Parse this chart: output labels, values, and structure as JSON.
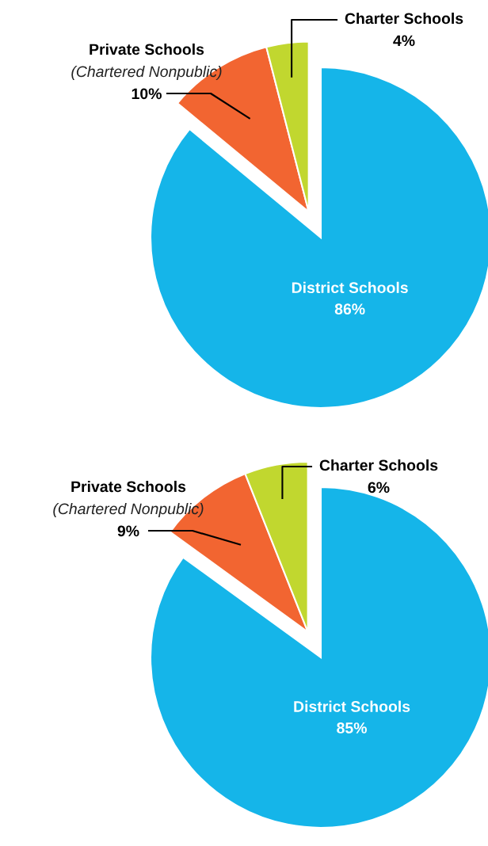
{
  "chart_data": [
    {
      "type": "pie",
      "categories": [
        "District Schools",
        "Private Schools",
        "Charter Schools"
      ],
      "values": [
        86,
        10,
        4
      ],
      "colors": [
        "#15b5e9",
        "#f26531",
        "#c1d72f"
      ],
      "value_labels": [
        "86%",
        "10%",
        "4%"
      ],
      "annotations": [
        "(Chartered Nonpublic)"
      ]
    },
    {
      "type": "pie",
      "categories": [
        "District Schools",
        "Private Schools",
        "Charter Schools"
      ],
      "values": [
        85,
        9,
        6
      ],
      "colors": [
        "#15b5e9",
        "#f26531",
        "#c1d72f"
      ],
      "value_labels": [
        "85%",
        "9%",
        "6%"
      ],
      "annotations": [
        "(Chartered Nonpublic)"
      ]
    }
  ]
}
